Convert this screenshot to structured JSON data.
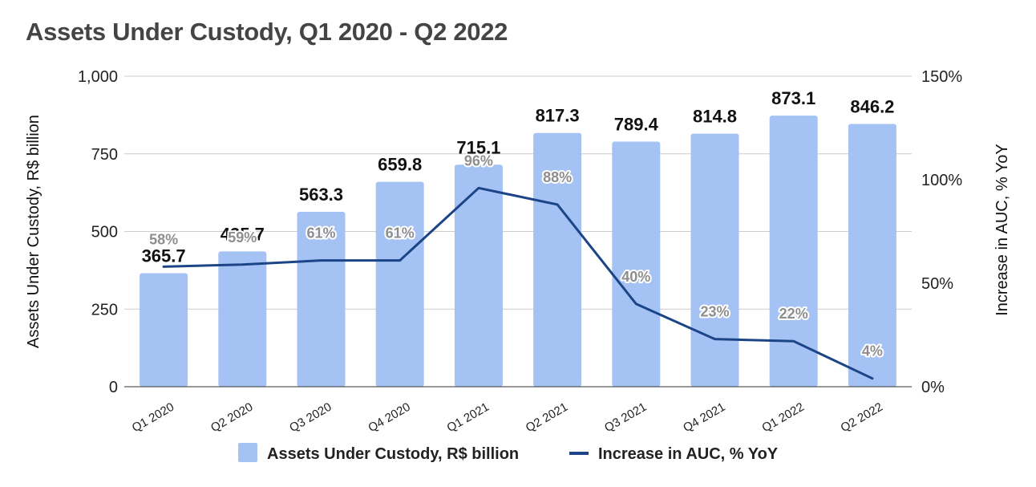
{
  "chart_data": {
    "type": "bar",
    "title": "Assets Under Custody, Q1 2020 - Q2 2022",
    "categories": [
      "Q1 2020",
      "Q2 2020",
      "Q3 2020",
      "Q4 2020",
      "Q1 2021",
      "Q2 2021",
      "Q3 2021",
      "Q4 2021",
      "Q1 2022",
      "Q2 2022"
    ],
    "series": [
      {
        "name": "Assets Under Custody, R$ billion",
        "type": "bar",
        "axis": "left",
        "color": "#a4c2f4",
        "values": [
          365.7,
          435.7,
          563.3,
          659.8,
          715.1,
          817.3,
          789.4,
          814.8,
          873.1,
          846.2
        ],
        "labels": [
          "365.7",
          "435.7",
          "563.3",
          "659.8",
          "715.1",
          "817.3",
          "789.4",
          "814.8",
          "873.1",
          "846.2"
        ]
      },
      {
        "name": "Increase in AUC, % YoY",
        "type": "line",
        "axis": "right",
        "color": "#1c4587",
        "values": [
          58,
          59,
          61,
          61,
          96,
          88,
          40,
          23,
          22,
          4
        ],
        "labels": [
          "58%",
          "59%",
          "61%",
          "61%",
          "96%",
          "88%",
          "40%",
          "23%",
          "22%",
          "4%"
        ]
      }
    ],
    "ylabel": "Assets Under Custody, R$ billion",
    "y2label": "Increase in AUC, % YoY",
    "ylim": [
      0,
      1000
    ],
    "y2lim": [
      0,
      150
    ],
    "yticks": [
      "1,000",
      "750",
      "500",
      "250",
      "0"
    ],
    "y2ticks": [
      "150%",
      "100%",
      "50%",
      "0%"
    ],
    "grid": true,
    "legend_position": "bottom"
  }
}
